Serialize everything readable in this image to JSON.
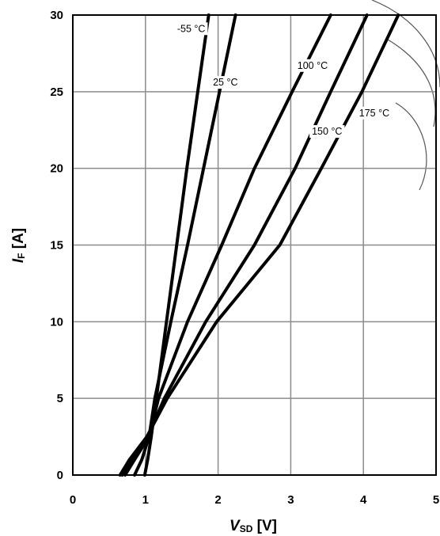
{
  "chart_data": {
    "type": "line",
    "title": "",
    "xlabel": {
      "main": "V",
      "sub": "SD",
      "unit": " [V]"
    },
    "ylabel": {
      "main": "I",
      "sub": "F",
      "unit": " [A]"
    },
    "xlim": [
      0,
      5
    ],
    "ylim": [
      0,
      30
    ],
    "x_ticks": [
      "0",
      "1",
      "2",
      "3",
      "4",
      "5"
    ],
    "y_ticks": [
      "0",
      "5",
      "10",
      "15",
      "20",
      "25",
      "30"
    ],
    "grid": true,
    "series": [
      {
        "name": "-55 °C",
        "points": [
          [
            0.99,
            0
          ],
          [
            1.03,
            1
          ],
          [
            1.08,
            2.5
          ],
          [
            1.15,
            5
          ],
          [
            1.29,
            10
          ],
          [
            1.43,
            15
          ],
          [
            1.57,
            20
          ],
          [
            1.72,
            25
          ],
          [
            1.87,
            30
          ]
        ]
      },
      {
        "name": "25 °C",
        "points": [
          [
            0.85,
            0
          ],
          [
            0.95,
            1
          ],
          [
            1.05,
            2.5
          ],
          [
            1.13,
            5
          ],
          [
            1.35,
            10
          ],
          [
            1.58,
            15
          ],
          [
            1.8,
            20
          ],
          [
            2.02,
            25
          ],
          [
            2.24,
            30
          ]
        ]
      },
      {
        "name": "100 °C",
        "points": [
          [
            0.72,
            0
          ],
          [
            0.85,
            1
          ],
          [
            1.05,
            2.5
          ],
          [
            1.18,
            5
          ],
          [
            1.58,
            10
          ],
          [
            2.05,
            15
          ],
          [
            2.5,
            20
          ],
          [
            3.02,
            25
          ],
          [
            3.55,
            30
          ]
        ]
      },
      {
        "name": "150 °C",
        "points": [
          [
            0.68,
            0
          ],
          [
            0.8,
            1
          ],
          [
            1.03,
            2.5
          ],
          [
            1.26,
            5
          ],
          [
            1.83,
            10
          ],
          [
            2.5,
            15
          ],
          [
            3.06,
            20
          ],
          [
            3.55,
            25
          ],
          [
            4.05,
            30
          ]
        ]
      },
      {
        "name": "175 °C",
        "points": [
          [
            0.65,
            0
          ],
          [
            0.78,
            1
          ],
          [
            1.02,
            2.5
          ],
          [
            1.3,
            5
          ],
          [
            1.98,
            10
          ],
          [
            2.85,
            15
          ],
          [
            3.42,
            20
          ],
          [
            3.98,
            25
          ],
          [
            4.48,
            30
          ]
        ]
      }
    ]
  }
}
